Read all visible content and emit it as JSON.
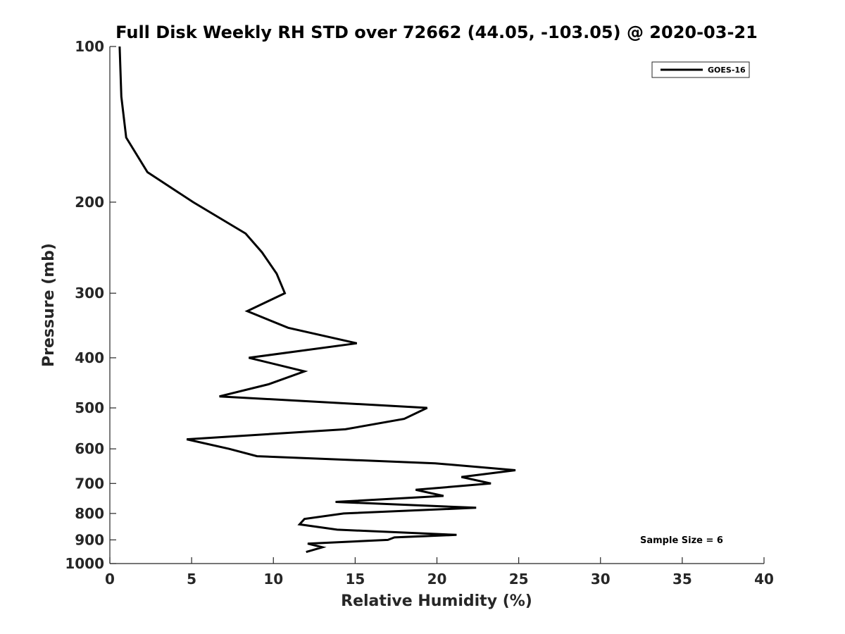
{
  "chart_data": {
    "type": "line",
    "title": "Full Disk Weekly RH STD over 72662 (44.05, -103.05) @ 2020-03-21",
    "xlabel": "Relative Humidity (%)",
    "ylabel": "Pressure (mb)",
    "xlim": [
      0,
      40
    ],
    "ylim": [
      1000,
      100
    ],
    "y_scale": "log",
    "y_reversed": true,
    "x_ticks": [
      "0",
      "5",
      "10",
      "15",
      "20",
      "25",
      "30",
      "35",
      "40"
    ],
    "y_ticks": [
      "100",
      "200",
      "300",
      "400",
      "500",
      "600",
      "700",
      "800",
      "900",
      "1000"
    ],
    "grid": false,
    "legend_position": "top-right",
    "series": [
      {
        "name": "GOES-16",
        "color": "#000000",
        "points": [
          [
            0.6,
            100
          ],
          [
            0.7,
            125
          ],
          [
            1.0,
            150
          ],
          [
            2.3,
            175
          ],
          [
            5.1,
            200
          ],
          [
            8.3,
            230
          ],
          [
            9.3,
            250
          ],
          [
            10.2,
            275
          ],
          [
            10.7,
            300
          ],
          [
            8.4,
            325
          ],
          [
            10.9,
            350
          ],
          [
            15.1,
            375
          ],
          [
            8.5,
            400
          ],
          [
            11.9,
            425
          ],
          [
            9.7,
            450
          ],
          [
            6.7,
            475
          ],
          [
            19.4,
            500
          ],
          [
            18.0,
            525
          ],
          [
            14.4,
            550
          ],
          [
            4.7,
            575
          ],
          [
            7.3,
            600
          ],
          [
            9.0,
            620
          ],
          [
            19.9,
            640
          ],
          [
            24.8,
            660
          ],
          [
            21.5,
            680
          ],
          [
            23.3,
            700
          ],
          [
            18.7,
            720
          ],
          [
            20.4,
            740
          ],
          [
            13.8,
            760
          ],
          [
            22.4,
            780
          ],
          [
            14.3,
            800
          ],
          [
            11.9,
            820
          ],
          [
            11.6,
            840
          ],
          [
            13.9,
            860
          ],
          [
            21.2,
            880
          ],
          [
            17.4,
            890
          ],
          [
            17.0,
            900
          ],
          [
            12.1,
            915
          ],
          [
            13.0,
            930
          ],
          [
            12.0,
            950
          ]
        ]
      }
    ],
    "annotations": [
      "Sample Size = 6"
    ]
  }
}
